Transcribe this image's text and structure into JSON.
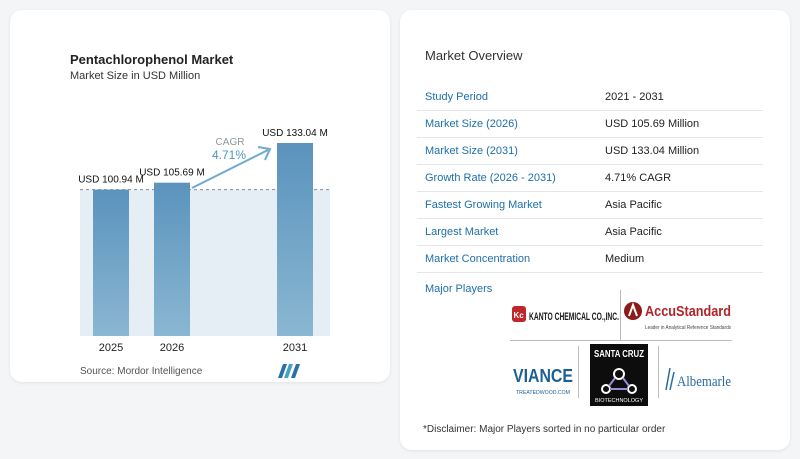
{
  "chart_data": {
    "type": "bar",
    "title": "Pentachlorophenol Market",
    "subtitle": "Market Size in USD Million",
    "categories": [
      "2025",
      "2026",
      "2031"
    ],
    "values": [
      100.94,
      105.69,
      133.04
    ],
    "data_labels": [
      "USD 100.94 M",
      "USD 105.69 M",
      "USD 133.04 M"
    ],
    "cagr_label": "CAGR",
    "cagr_value": "4.71%",
    "bar_color": "#5b93bd",
    "bar_color_light": "#8ab7d2"
  },
  "source": "Source: Mordor Intelligence",
  "overview": {
    "title": "Market Overview",
    "rows": [
      {
        "key": "Study Period",
        "value": "2021 - 2031"
      },
      {
        "key": "Market Size (2026)",
        "value": "USD 105.69 Million"
      },
      {
        "key": "Market Size (2031)",
        "value": "USD 133.04 Million"
      },
      {
        "key": "Growth Rate (2026 - 2031)",
        "value": "4.71% CAGR"
      },
      {
        "key": "Fastest Growing Market",
        "value": "Asia Pacific"
      },
      {
        "key": "Largest Market",
        "value": "Asia Pacific"
      },
      {
        "key": "Market Concentration",
        "value": "Medium"
      }
    ],
    "players_label": "Major Players",
    "players": [
      {
        "name": "KANTO CHEMICAL CO.,INC."
      },
      {
        "name": "AccuStandard",
        "tagline": "Leader in Analytical Reference Standards"
      },
      {
        "name": "VIANCE",
        "tagline": "TREATEDWOOD.COM"
      },
      {
        "name": "SANTA CRUZ",
        "tagline": "BIOTECHNOLOGY"
      },
      {
        "name": "Albemarle"
      }
    ],
    "disclaimer": "*Disclaimer: Major Players sorted in no particular order"
  }
}
